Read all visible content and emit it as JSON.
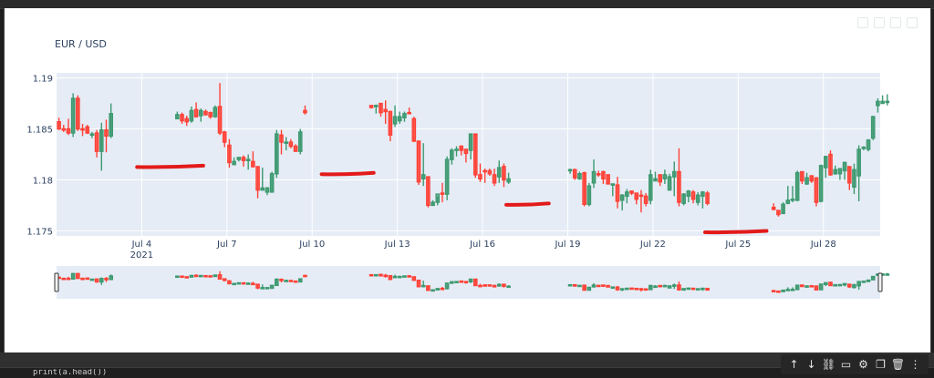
{
  "app": {
    "kind": "notebook-output-cell",
    "code_line_partial": "print(a.head())"
  },
  "cell_toolbar": {
    "buttons": [
      {
        "name": "move-up",
        "icon": "arrow-up-icon",
        "glyph": "↑"
      },
      {
        "name": "move-down",
        "icon": "arrow-down-icon",
        "glyph": "↓"
      },
      {
        "name": "link",
        "icon": "link-icon",
        "glyph": "⛓"
      },
      {
        "name": "comment",
        "icon": "comment-icon",
        "glyph": "▭"
      },
      {
        "name": "settings",
        "icon": "gear-icon",
        "glyph": "⚙"
      },
      {
        "name": "mirror",
        "icon": "copy-icon",
        "glyph": "❐"
      },
      {
        "name": "delete",
        "icon": "trash-icon",
        "glyph": "🗑"
      },
      {
        "name": "more",
        "icon": "more-vertical-icon",
        "glyph": "⋮"
      }
    ]
  },
  "chart_data": {
    "type": "candlestick",
    "title": "EUR / USD",
    "xlabel": "",
    "ylabel": "",
    "ylim": [
      1.1745,
      1.1905
    ],
    "yticks": [
      "1.175",
      "1.18",
      "1.185",
      "1.19"
    ],
    "xticks": [
      {
        "label": "Jul 4",
        "sub": "2021"
      },
      {
        "label": "Jul 7"
      },
      {
        "label": "Jul 10"
      },
      {
        "label": "Jul 13"
      },
      {
        "label": "Jul 16"
      },
      {
        "label": "Jul 19"
      },
      {
        "label": "Jul 22"
      },
      {
        "label": "Jul 25"
      },
      {
        "label": "Jul 28"
      }
    ],
    "xrange": [
      "2021-07-01 00:00",
      "2021-07-30 00:00"
    ],
    "increasing_color": "#3D9970",
    "decreasing_color": "#FF4136",
    "plot_bg": "#E5ECF6",
    "grid": true,
    "rangeslider": true,
    "candle_interval_hours": 4,
    "segments": [
      {
        "start": "2021-07-01 00:00",
        "candles": [
          [
            1.1857,
            1.1861,
            1.1849,
            1.185
          ],
          [
            1.185,
            1.1854,
            1.1847,
            1.1849
          ],
          [
            1.185,
            1.186,
            1.1844,
            1.1846
          ],
          [
            1.1846,
            1.1885,
            1.1842,
            1.188
          ],
          [
            1.188,
            1.1883,
            1.1848,
            1.185
          ],
          [
            1.185,
            1.1855,
            1.1843,
            1.1849
          ],
          [
            1.1852,
            1.1854,
            1.1845,
            1.1846
          ],
          [
            1.1844,
            1.1847,
            1.1841,
            1.1845
          ],
          [
            1.1846,
            1.1849,
            1.1822,
            1.1828
          ],
          [
            1.1828,
            1.1856,
            1.1809,
            1.1849
          ],
          [
            1.1849,
            1.1859,
            1.1827,
            1.1843
          ],
          [
            1.1843,
            1.1875,
            1.1841,
            1.1865
          ]
        ]
      },
      {
        "start": "2021-07-05 04:00",
        "candles": [
          [
            1.186,
            1.1867,
            1.186,
            1.1864
          ],
          [
            1.1864,
            1.1866,
            1.1855,
            1.1858
          ],
          [
            1.186,
            1.1863,
            1.1853,
            1.1857
          ],
          [
            1.1858,
            1.1872,
            1.1856,
            1.1868
          ],
          [
            1.1869,
            1.1876,
            1.1861,
            1.1862
          ],
          [
            1.1863,
            1.187,
            1.1857,
            1.1868
          ],
          [
            1.1867,
            1.1869,
            1.1863,
            1.1864
          ],
          [
            1.1866,
            1.1867,
            1.186,
            1.1862
          ],
          [
            1.1862,
            1.1873,
            1.1861,
            1.1871
          ],
          [
            1.1872,
            1.1895,
            1.1844,
            1.1846
          ],
          [
            1.1847,
            1.1848,
            1.1832,
            1.1837
          ],
          [
            1.1834,
            1.184,
            1.1812,
            1.1817
          ],
          [
            1.1815,
            1.1822,
            1.1815,
            1.1818
          ],
          [
            1.182,
            1.1822,
            1.1818,
            1.1822
          ],
          [
            1.1822,
            1.1824,
            1.1813,
            1.1819
          ],
          [
            1.182,
            1.1825,
            1.181,
            1.182
          ],
          [
            1.1818,
            1.1828,
            1.1812,
            1.1813
          ],
          [
            1.1813,
            1.1813,
            1.1782,
            1.179
          ],
          [
            1.179,
            1.1812,
            1.179,
            1.1792
          ],
          [
            1.1788,
            1.1793,
            1.1785,
            1.1792
          ],
          [
            1.1788,
            1.1808,
            1.1788,
            1.1806
          ],
          [
            1.1806,
            1.1849,
            1.1802,
            1.1845
          ],
          [
            1.1844,
            1.1849,
            1.1825,
            1.1837
          ],
          [
            1.1836,
            1.1842,
            1.1829,
            1.1837
          ],
          [
            1.1837,
            1.184,
            1.1831,
            1.1833
          ],
          [
            1.1833,
            1.1835,
            1.1828,
            1.1828
          ],
          [
            1.1828,
            1.185,
            1.1825,
            1.1847
          ],
          [
            1.1868,
            1.1873,
            1.1864,
            1.1866
          ]
        ]
      },
      {
        "start": "2021-07-12 00:00",
        "candles": [
          [
            1.1873,
            1.1873,
            1.187,
            1.1871
          ],
          [
            1.1873,
            1.1874,
            1.1865,
            1.1873
          ],
          [
            1.1875,
            1.1875,
            1.1862,
            1.1866
          ],
          [
            1.1869,
            1.1878,
            1.1855,
            1.1867
          ],
          [
            1.1867,
            1.1868,
            1.1838,
            1.1844
          ],
          [
            1.1855,
            1.1873,
            1.1852,
            1.1862
          ],
          [
            1.1858,
            1.1867,
            1.1855,
            1.1862
          ],
          [
            1.1861,
            1.1867,
            1.1857,
            1.1865
          ],
          [
            1.1866,
            1.1871,
            1.1865,
            1.1865
          ],
          [
            1.186,
            1.1862,
            1.1837,
            1.1838
          ],
          [
            1.1838,
            1.1838,
            1.1795,
            1.1798
          ],
          [
            1.1801,
            1.1836,
            1.1794,
            1.1805
          ],
          [
            1.1803,
            1.1803,
            1.1773,
            1.1775
          ],
          [
            1.1775,
            1.178,
            1.1775,
            1.1778
          ],
          [
            1.1778,
            1.1784,
            1.1775,
            1.1786
          ],
          [
            1.1787,
            1.1797,
            1.1778,
            1.1786
          ],
          [
            1.1786,
            1.1823,
            1.178,
            1.182
          ],
          [
            1.182,
            1.1831,
            1.1815,
            1.1829
          ],
          [
            1.1829,
            1.1833,
            1.1823,
            1.183
          ],
          [
            1.1833,
            1.1834,
            1.1824,
            1.1829
          ],
          [
            1.183,
            1.183,
            1.1817,
            1.1826
          ],
          [
            1.1829,
            1.1845,
            1.182,
            1.1845
          ],
          [
            1.1845,
            1.1845,
            1.1802,
            1.1805
          ],
          [
            1.1805,
            1.1816,
            1.1798,
            1.1801
          ],
          [
            1.1809,
            1.1811,
            1.1797,
            1.1808
          ],
          [
            1.1809,
            1.1811,
            1.1804,
            1.1806
          ],
          [
            1.1805,
            1.1811,
            1.1794,
            1.1797
          ],
          [
            1.1803,
            1.1819,
            1.1797,
            1.1812
          ],
          [
            1.1813,
            1.1816,
            1.1793,
            1.18
          ],
          [
            1.1798,
            1.1807,
            1.1796,
            1.1801
          ]
        ]
      },
      {
        "start": "2021-07-19 00:00",
        "candles": [
          [
            1.1809,
            1.1811,
            1.1806,
            1.181
          ],
          [
            1.181,
            1.1811,
            1.18,
            1.1802
          ],
          [
            1.1801,
            1.1808,
            1.18,
            1.1806
          ],
          [
            1.1807,
            1.1808,
            1.1774,
            1.1776
          ],
          [
            1.1776,
            1.1797,
            1.1774,
            1.1794
          ],
          [
            1.1797,
            1.182,
            1.1792,
            1.1808
          ],
          [
            1.1806,
            1.1809,
            1.1803,
            1.1805
          ],
          [
            1.1808,
            1.1809,
            1.1796,
            1.1801
          ],
          [
            1.1805,
            1.1805,
            1.1796,
            1.1796
          ],
          [
            1.1796,
            1.1796,
            1.1784,
            1.1796
          ],
          [
            1.1795,
            1.1803,
            1.1772,
            1.1779
          ],
          [
            1.178,
            1.1786,
            1.177,
            1.1785
          ],
          [
            1.1784,
            1.1791,
            1.1777,
            1.1788
          ],
          [
            1.1789,
            1.1789,
            1.1785,
            1.1787
          ],
          [
            1.1787,
            1.1787,
            1.1776,
            1.1781
          ],
          [
            1.1785,
            1.179,
            1.1768,
            1.1784
          ],
          [
            1.1784,
            1.1787,
            1.1774,
            1.1777
          ],
          [
            1.178,
            1.181,
            1.1776,
            1.1805
          ],
          [
            1.1799,
            1.1808,
            1.1799,
            1.1801
          ],
          [
            1.1805,
            1.1805,
            1.1794,
            1.1798
          ],
          [
            1.1801,
            1.181,
            1.1796,
            1.1805
          ],
          [
            1.179,
            1.1806,
            1.179,
            1.1803
          ],
          [
            1.1803,
            1.1818,
            1.1784,
            1.1808
          ],
          [
            1.1808,
            1.1831,
            1.1774,
            1.1778
          ],
          [
            1.1777,
            1.1787,
            1.1775,
            1.1786
          ],
          [
            1.1784,
            1.179,
            1.1778,
            1.1789
          ],
          [
            1.1788,
            1.179,
            1.1777,
            1.1781
          ],
          [
            1.1778,
            1.1788,
            1.1775,
            1.1785
          ],
          [
            1.1784,
            1.1789,
            1.1772,
            1.1788
          ],
          [
            1.1787,
            1.1789,
            1.1775,
            1.1777
          ]
        ]
      },
      {
        "start": "2021-07-26 04:00",
        "candles": [
          [
            1.1773,
            1.1777,
            1.177,
            1.1771
          ],
          [
            1.177,
            1.177,
            1.1764,
            1.1766
          ],
          [
            1.1767,
            1.1778,
            1.1767,
            1.1776
          ],
          [
            1.1777,
            1.1794,
            1.1776,
            1.178
          ],
          [
            1.178,
            1.1794,
            1.1778,
            1.1781
          ],
          [
            1.178,
            1.1809,
            1.1779,
            1.1807
          ],
          [
            1.1808,
            1.1808,
            1.1796,
            1.1799
          ],
          [
            1.1796,
            1.1807,
            1.1795,
            1.1802
          ],
          [
            1.1804,
            1.1804,
            1.1797,
            1.1799
          ],
          [
            1.1802,
            1.1802,
            1.1774,
            1.1778
          ],
          [
            1.1779,
            1.1815,
            1.1778,
            1.1814
          ],
          [
            1.1812,
            1.1823,
            1.1802,
            1.1823
          ],
          [
            1.1825,
            1.1829,
            1.1804,
            1.1805
          ],
          [
            1.1806,
            1.1814,
            1.1805,
            1.181
          ],
          [
            1.1806,
            1.1811,
            1.18,
            1.1811
          ],
          [
            1.1809,
            1.1818,
            1.18,
            1.1817
          ],
          [
            1.1813,
            1.1813,
            1.179,
            1.1797
          ],
          [
            1.1793,
            1.1816,
            1.1786,
            1.181
          ],
          [
            1.1804,
            1.1834,
            1.1779,
            1.183
          ],
          [
            1.1831,
            1.1833,
            1.1829,
            1.1832
          ],
          [
            1.183,
            1.184,
            1.1828,
            1.1839
          ],
          [
            1.1841,
            1.1863,
            1.1839,
            1.1862
          ],
          [
            1.1873,
            1.188,
            1.1866,
            1.1877
          ],
          [
            1.1875,
            1.1883,
            1.1875,
            1.1877
          ],
          [
            1.1876,
            1.1884,
            1.1873,
            1.1877
          ]
        ]
      }
    ],
    "annotations": [
      {
        "type": "freehand-stroke",
        "color": "#E31A1A",
        "x": [
          "2021-07-03 20:00",
          "2021-07-06 04:00"
        ],
        "y": 1.1813
      },
      {
        "type": "freehand-stroke",
        "color": "#E31A1A",
        "x": [
          "2021-07-10 08:00",
          "2021-07-12 04:00"
        ],
        "y": 1.1806
      },
      {
        "type": "freehand-stroke",
        "color": "#E31A1A",
        "x": [
          "2021-07-16 20:00",
          "2021-07-18 08:00"
        ],
        "y": 1.1776
      },
      {
        "type": "freehand-stroke",
        "color": "#E31A1A",
        "x": [
          "2021-07-23 20:00",
          "2021-07-26 00:00"
        ],
        "y": 1.1749
      }
    ]
  }
}
